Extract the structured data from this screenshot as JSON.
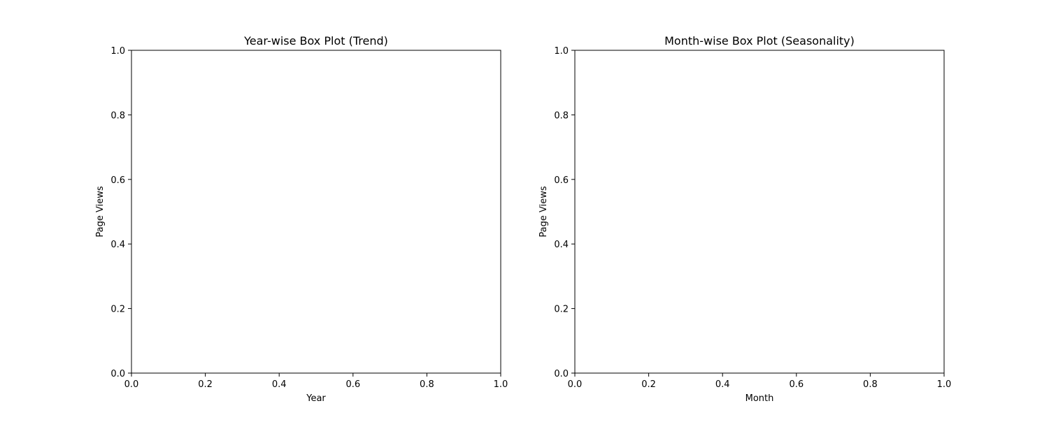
{
  "figure": {
    "background": "#ffffff"
  },
  "chart_data": [
    {
      "type": "box",
      "title": "Year-wise Box Plot (Trend)",
      "xlabel": "Year",
      "ylabel": "Page Views",
      "xlim": [
        0.0,
        1.0
      ],
      "ylim": [
        0.0,
        1.0
      ],
      "xticks": [
        "0.0",
        "0.2",
        "0.4",
        "0.6",
        "0.8",
        "1.0"
      ],
      "yticks": [
        "0.0",
        "0.2",
        "0.4",
        "0.6",
        "0.8",
        "1.0"
      ],
      "categories": [],
      "series": [],
      "grid": false
    },
    {
      "type": "box",
      "title": "Month-wise Box Plot (Seasonality)",
      "xlabel": "Month",
      "ylabel": "Page Views",
      "xlim": [
        0.0,
        1.0
      ],
      "ylim": [
        0.0,
        1.0
      ],
      "xticks": [
        "0.0",
        "0.2",
        "0.4",
        "0.6",
        "0.8",
        "1.0"
      ],
      "yticks": [
        "0.0",
        "0.2",
        "0.4",
        "0.6",
        "0.8",
        "1.0"
      ],
      "categories": [],
      "series": [],
      "grid": false
    }
  ]
}
